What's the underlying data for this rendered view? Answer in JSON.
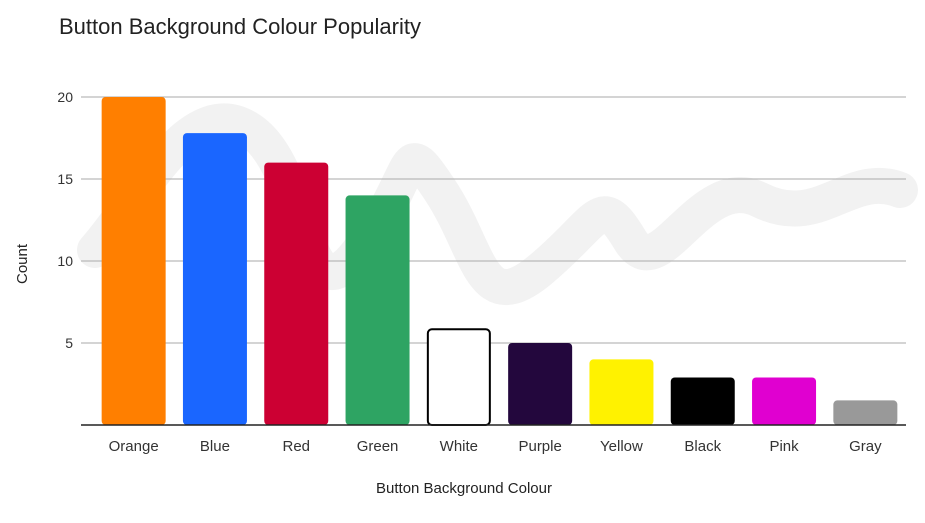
{
  "chart_data": {
    "type": "bar",
    "title": "Button Background Colour Popularity",
    "xlabel": "Button Background Colour",
    "ylabel": "Count",
    "ylim": [
      0,
      20
    ],
    "yticks": [
      "5",
      "10",
      "15",
      "20"
    ],
    "grid": true,
    "legend": "none",
    "categories": [
      "Orange",
      "Blue",
      "Red",
      "Green",
      "White",
      "Purple",
      "Yellow",
      "Black",
      "Pink",
      "Gray"
    ],
    "values": [
      20,
      17.8,
      16,
      14,
      5.9,
      5,
      4,
      2.9,
      2.9,
      1.5
    ],
    "colors": [
      "#ff7f00",
      "#1a66ff",
      "#cc0033",
      "#2ea463",
      "#ffffff",
      "#23073d",
      "#fff200",
      "#000000",
      "#e000d0",
      "#999999"
    ],
    "outline_colors": [
      "",
      "",
      "",
      "",
      "#000000",
      "",
      "",
      "",
      "",
      ""
    ]
  }
}
